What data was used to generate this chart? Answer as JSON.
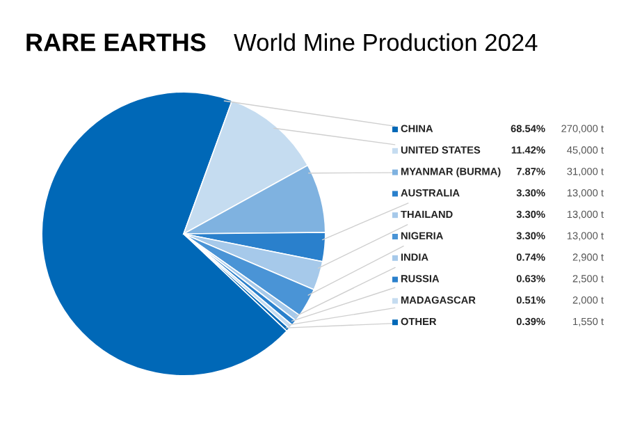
{
  "chart_data": {
    "type": "pie",
    "title": "RARE EARTHS",
    "subtitle": "World Mine Production 2024",
    "categories": [
      "CHINA",
      "UNITED STATES",
      "MYANMAR (BURMA)",
      "AUSTRALIA",
      "THAILAND",
      "NIGERIA",
      "INDIA",
      "RUSSIA",
      "MADAGASCAR",
      "OTHER"
    ],
    "values": [
      68.54,
      11.42,
      7.87,
      3.3,
      3.3,
      3.3,
      0.74,
      0.63,
      0.51,
      0.39
    ],
    "value_labels": [
      "68.54%",
      "11.42%",
      "7.87%",
      "3.30%",
      "3.30%",
      "3.30%",
      "0.74%",
      "0.63%",
      "0.51%",
      "0.39%"
    ],
    "colors": [
      "#0068b7",
      "#c5dcf0",
      "#7fb2e0",
      "#2a80cc",
      "#a6c9ea",
      "#4a94d6",
      "#a6c9ea",
      "#2a80cc",
      "#c5dcf0",
      "#0068b7"
    ],
    "annotations": [
      "270,000 t",
      "45,000 t",
      "31,000 t",
      "13,000 t",
      "13,000 t",
      "13,000 t",
      "2,900 t",
      "2,500 t",
      "2,000 t",
      "1,550 t"
    ],
    "legend": "right"
  }
}
